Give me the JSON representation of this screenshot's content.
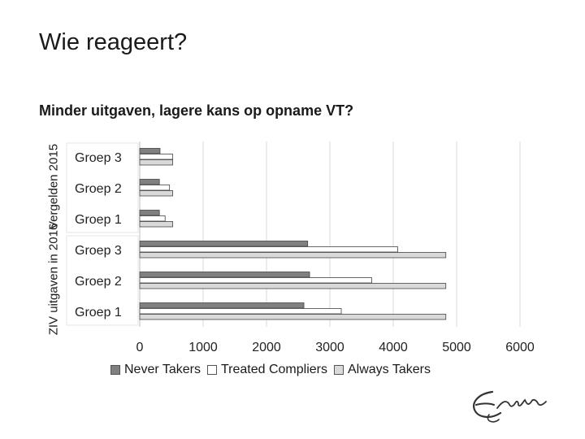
{
  "slide": {
    "title": "Wie reageert?"
  },
  "chart_data": {
    "type": "bar",
    "orientation": "horizontal",
    "title": "Minder uitgaven, lagere kans op opname VT?",
    "groups": [
      {
        "label": "Vergelden 2015",
        "categories": [
          "Groep 3",
          "Groep 2",
          "Groep 1"
        ]
      },
      {
        "label": "ZIV uitgaven in 2016",
        "categories": [
          "Groep 3",
          "Groep 2",
          "Groep 1"
        ]
      }
    ],
    "categories": [
      "Groep 3",
      "Groep 2",
      "Groep 1",
      "Groep 3",
      "Groep 2",
      "Groep 1"
    ],
    "series": [
      {
        "name": "Never Takers",
        "color": "#808080",
        "values": [
          320,
          310,
          310,
          2650,
          2680,
          2590
        ]
      },
      {
        "name": "Treated Compliers",
        "color": "#ffffff",
        "values": [
          520,
          470,
          400,
          4070,
          3660,
          3180
        ]
      },
      {
        "name": "Always Takers",
        "color": "#d9d9d9",
        "values": [
          520,
          520,
          520,
          4830,
          4830,
          4830
        ]
      }
    ],
    "xlim": [
      0,
      6000
    ],
    "xticks": [
      "0",
      "1000",
      "2000",
      "3000",
      "4000",
      "5000",
      "6000"
    ],
    "grid": true,
    "legend": "bottom"
  }
}
